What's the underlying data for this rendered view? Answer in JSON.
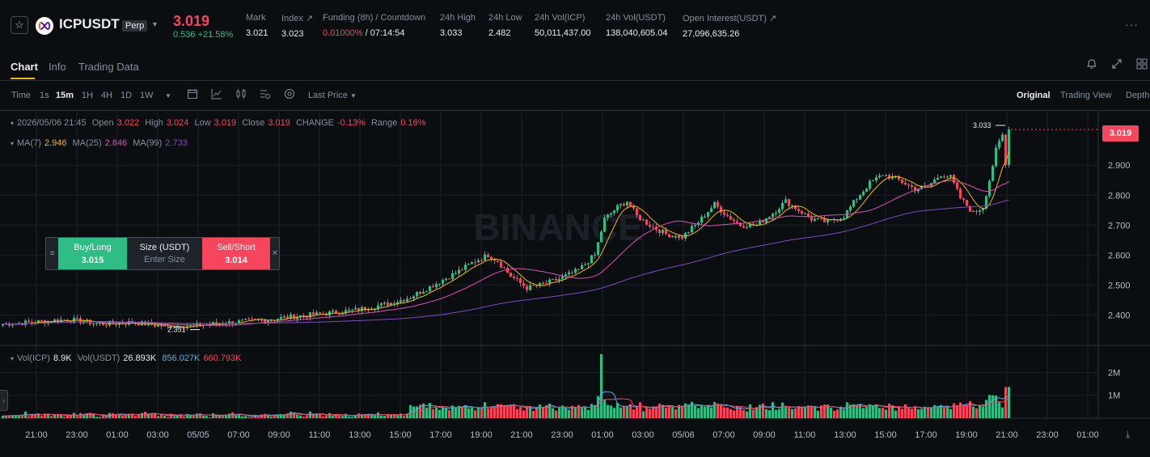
{
  "header": {
    "symbol": "ICPUSDT",
    "contract_type": "Perp",
    "last_price": "3.019",
    "change": "0.536 +21.58%",
    "stats": [
      {
        "label": "Mark",
        "value": "3.021"
      },
      {
        "label": "Index ↗",
        "value": "3.023"
      },
      {
        "label": "Funding (8h) / Countdown",
        "value_red": "0.01000%",
        "value": " / 07:14:54"
      },
      {
        "label": "24h High",
        "value": "3.033"
      },
      {
        "label": "24h Low",
        "value": "2.482"
      },
      {
        "label": "24h Vol(ICP)",
        "value": "50,011,437.00"
      },
      {
        "label": "24h Vol(USDT)",
        "value": "138,040,605.04"
      },
      {
        "label": "Open Interest(USDT) ↗",
        "value": "27,096,635.26"
      }
    ]
  },
  "tabs": [
    "Chart",
    "Info",
    "Trading Data"
  ],
  "toolbar": {
    "time_label": "Time",
    "intervals": [
      "1s",
      "15m",
      "1H",
      "4H",
      "1D",
      "1W"
    ],
    "active_interval": "15m",
    "price_type": "Last Price",
    "views": [
      "Original",
      "Trading View",
      "Depth"
    ],
    "active_view": "Original"
  },
  "legend": {
    "datetime": "2026/05/06 21:45",
    "open_label": "Open",
    "open": "3.022",
    "high_label": "High",
    "high": "3.024",
    "low_label": "Low",
    "low": "3.019",
    "close_label": "Close",
    "close": "3.019",
    "change_label": "CHANGE",
    "change": "-0.13%",
    "range_label": "Range",
    "range": "0.16%",
    "ma7_label": "MA(7)",
    "ma7": "2.946",
    "ma25_label": "MA(25)",
    "ma25": "2.846",
    "ma99_label": "MA(99)",
    "ma99": "2.733",
    "vol_label": "Vol(ICP)",
    "vol": "8.9K",
    "volusdt_label": "Vol(USDT)",
    "volusdt": "26.893K",
    "volma1": "856.027K",
    "volma2": "660.793K"
  },
  "order_widget": {
    "buy_label": "Buy/Long",
    "buy_price": "3.015",
    "size_label": "Size (USDT)",
    "size_placeholder": "Enter Size",
    "sell_label": "Sell/Short",
    "sell_price": "3.014"
  },
  "watermark": "BINANCE",
  "colors": {
    "up": "#2ebd85",
    "down": "#f6465d",
    "ma7": "#f0b90b",
    "ma25": "#e04db6",
    "ma99": "#7b4cc2",
    "volma1": "#4fb0e3",
    "volma2": "#f6465d"
  },
  "chart_data": {
    "type": "candlestick",
    "interval": "15m",
    "current_price": 3.019,
    "price_axis": {
      "ticks": [
        "2.400",
        "2.500",
        "2.600",
        "2.700",
        "2.800",
        "2.900"
      ],
      "ylim": [
        2.32,
        3.06
      ]
    },
    "volume_axis": {
      "ticks": [
        "1M",
        "2M"
      ],
      "ylim": [
        0,
        2900000
      ]
    },
    "x_ticks": [
      "21:00",
      "23:00",
      "01:00",
      "03:00",
      "05/05",
      "07:00",
      "09:00",
      "11:00",
      "13:00",
      "15:00",
      "17:00",
      "19:00",
      "21:00",
      "23:00",
      "01:00",
      "03:00",
      "05/06",
      "07:00",
      "09:00",
      "11:00",
      "13:00",
      "15:00",
      "17:00",
      "19:00",
      "21:00",
      "23:00",
      "01:00"
    ],
    "annotations": [
      {
        "label": "3.033",
        "value": 3.033
      },
      {
        "label": "2.351",
        "value": 2.351
      }
    ],
    "close_anchors": [
      {
        "i": 0,
        "close": 2.37
      },
      {
        "i": 8,
        "close": 2.375
      },
      {
        "i": 20,
        "close": 2.385
      },
      {
        "i": 30,
        "close": 2.37
      },
      {
        "i": 40,
        "close": 2.375
      },
      {
        "i": 50,
        "close": 2.362
      },
      {
        "i": 60,
        "close": 2.365
      },
      {
        "i": 70,
        "close": 2.375
      },
      {
        "i": 80,
        "close": 2.382
      },
      {
        "i": 90,
        "close": 2.395
      },
      {
        "i": 100,
        "close": 2.405
      },
      {
        "i": 110,
        "close": 2.418
      },
      {
        "i": 120,
        "close": 2.44
      },
      {
        "i": 126,
        "close": 2.46
      },
      {
        "i": 133,
        "close": 2.5
      },
      {
        "i": 140,
        "close": 2.54
      },
      {
        "i": 146,
        "close": 2.58
      },
      {
        "i": 150,
        "close": 2.6
      },
      {
        "i": 153,
        "close": 2.58
      },
      {
        "i": 157,
        "close": 2.53
      },
      {
        "i": 162,
        "close": 2.49
      },
      {
        "i": 166,
        "close": 2.5
      },
      {
        "i": 172,
        "close": 2.52
      },
      {
        "i": 178,
        "close": 2.55
      },
      {
        "i": 183,
        "close": 2.6
      },
      {
        "i": 186,
        "close": 2.72
      },
      {
        "i": 190,
        "close": 2.76
      },
      {
        "i": 193,
        "close": 2.78
      },
      {
        "i": 196,
        "close": 2.73
      },
      {
        "i": 200,
        "close": 2.7
      },
      {
        "i": 205,
        "close": 2.67
      },
      {
        "i": 210,
        "close": 2.66
      },
      {
        "i": 215,
        "close": 2.71
      },
      {
        "i": 220,
        "close": 2.77
      },
      {
        "i": 224,
        "close": 2.73
      },
      {
        "i": 228,
        "close": 2.7
      },
      {
        "i": 233,
        "close": 2.7
      },
      {
        "i": 238,
        "close": 2.74
      },
      {
        "i": 242,
        "close": 2.78
      },
      {
        "i": 246,
        "close": 2.75
      },
      {
        "i": 250,
        "close": 2.72
      },
      {
        "i": 255,
        "close": 2.71
      },
      {
        "i": 260,
        "close": 2.73
      },
      {
        "i": 264,
        "close": 2.79
      },
      {
        "i": 268,
        "close": 2.84
      },
      {
        "i": 272,
        "close": 2.87
      },
      {
        "i": 277,
        "close": 2.85
      },
      {
        "i": 282,
        "close": 2.82
      },
      {
        "i": 286,
        "close": 2.83
      },
      {
        "i": 290,
        "close": 2.87
      },
      {
        "i": 293,
        "close": 2.86
      },
      {
        "i": 296,
        "close": 2.79
      },
      {
        "i": 300,
        "close": 2.74
      },
      {
        "i": 303,
        "close": 2.76
      },
      {
        "i": 305,
        "close": 2.85
      },
      {
        "i": 307,
        "close": 2.95
      },
      {
        "i": 309,
        "close": 3.0
      },
      {
        "i": 310,
        "close": 2.9
      },
      {
        "i": 311,
        "close": 3.019
      }
    ]
  }
}
